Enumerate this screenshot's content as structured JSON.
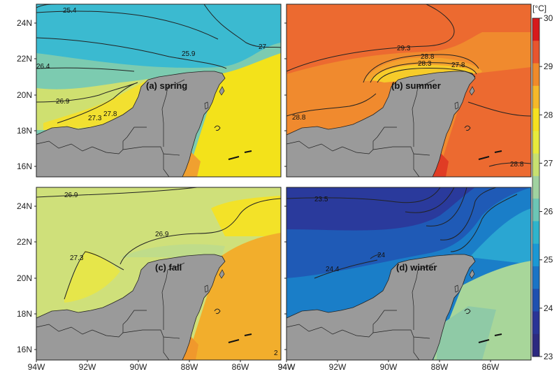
{
  "colorbar": {
    "unit": "[°C]",
    "ticks": [
      "30",
      "29",
      "28",
      "27",
      "26",
      "25",
      "24",
      "23"
    ],
    "colors": [
      "#d7191c",
      "#e8552e",
      "#f08a2a",
      "#f5b82a",
      "#f5e020",
      "#e8ea3c",
      "#c8e070",
      "#a0d2a0",
      "#6cc6b6",
      "#2fb4cc",
      "#1b98d4",
      "#1a74c6",
      "#1f50b0",
      "#2a3496",
      "#2d2a80"
    ]
  },
  "axes": {
    "lat_ticks": [
      "24N",
      "22N",
      "20N",
      "18N",
      "16N"
    ],
    "lon_ticks": [
      "94W",
      "92W",
      "90W",
      "88W",
      "86W"
    ]
  },
  "panels": [
    {
      "id": "spring",
      "title": "(a) spring",
      "contour_labels": [
        "25.4",
        "25.9",
        "26.4",
        "26.9",
        "27.3",
        "27.8",
        "27"
      ],
      "colors": {
        "north": "#3bbad0",
        "mid": "#7ccbb0",
        "south": "#cfe070",
        "coast": "#f2e030",
        "east": "#f3e21a",
        "hot": "#f0a030"
      }
    },
    {
      "id": "summer",
      "title": "(b) summer",
      "contour_labels": [
        "29.3",
        "28.8",
        "28.3",
        "27.8",
        "28.8",
        "28.8"
      ],
      "colors": {
        "north": "#ec6a30",
        "mid": "#f08a2e",
        "south": "#f4a22e",
        "coast": "#f6cc2a",
        "east": "#ec6a30",
        "hot": "#e03c24"
      }
    },
    {
      "id": "fall",
      "title": "(c) fall",
      "contour_labels": [
        "26.9",
        "26.9",
        "27.3",
        "2"
      ],
      "colors": {
        "north": "#cfe07a",
        "mid": "#bfdc8a",
        "south": "#e6e64a",
        "coast": "#f3e228",
        "east": "#f2ae2c",
        "hot": "#f0982c"
      }
    },
    {
      "id": "winter",
      "title": "(d) winter",
      "contour_labels": [
        "23.5",
        "24.4",
        "24"
      ],
      "colors": {
        "north": "#2a3a9c",
        "mid": "#1f5ab6",
        "south": "#1a7ec8",
        "coast": "#2aa6d2",
        "east": "#a8d69a",
        "hot": "#8fcaa6"
      }
    }
  ]
}
